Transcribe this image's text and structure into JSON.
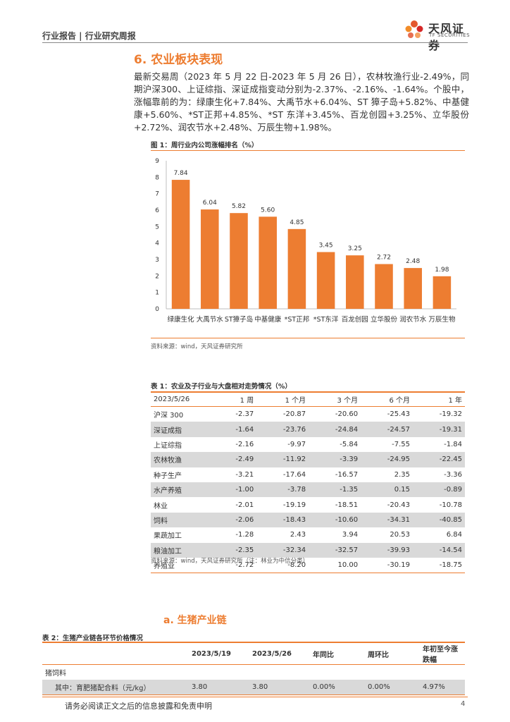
{
  "header": {
    "crumb": "行业报告 | 行业研究周报",
    "logo_cn": "天风证券",
    "logo_en": "TF SECURITIES"
  },
  "section": {
    "title": "6. 农业板块表现"
  },
  "paragraph": "最新交易周（2023 年 5 月 22 日-2023 年 5 月 26 日），农林牧渔行业-2.49%，同期沪深300、上证综指、深证成指变动分别为-2.37%、-2.16%、-1.64%。个股中，涨幅靠前的为：绿康生化+7.84%、大禹节水+6.04%、ST 獐子岛+5.82%、中基健康+5.60%、*ST正邦+4.85%、*ST 东洋+3.45%、百龙创园+3.25%、立华股份+2.72%、润农节水+2.48%、万辰生物+1.98%。",
  "figure1": {
    "caption": "图 1：周行业内公司涨幅排名（%）",
    "source": "资料来源：wind，天风证券研究所"
  },
  "chart_data": {
    "type": "bar",
    "title": "周行业内公司涨幅排名（%）",
    "categories": [
      "绿康生化",
      "大禹节水",
      "ST獐子岛",
      "中基健康",
      "*ST正邦",
      "*ST东洋",
      "百龙创园",
      "立华股份",
      "润农节水",
      "万辰生物"
    ],
    "values": [
      7.84,
      6.04,
      5.82,
      5.6,
      4.85,
      3.45,
      3.25,
      2.72,
      2.48,
      1.98
    ],
    "value_labels": [
      "7.84",
      "6.04",
      "5.82",
      "5.60",
      "4.85",
      "3.45",
      "3.25",
      "2.72",
      "2.48",
      "1.98"
    ],
    "yticks": [
      "0",
      "1",
      "2",
      "3",
      "4",
      "5",
      "6",
      "7",
      "8",
      "9"
    ],
    "ylim": [
      0,
      9
    ],
    "grid": false,
    "bar_color": "#ED7D31"
  },
  "table1": {
    "caption": "表 1：农业及子行业与大盘相对走势情况（%）",
    "headers": [
      "2023/5/26",
      "1 周",
      "1 个月",
      "3 个月",
      "6 个月",
      "1 年"
    ],
    "rows": [
      [
        "沪深 300",
        "-2.37",
        "-20.87",
        "-20.60",
        "-25.43",
        "-19.32"
      ],
      [
        "深证成指",
        "-1.64",
        "-23.76",
        "-24.84",
        "-24.57",
        "-19.31"
      ],
      [
        "上证综指",
        "-2.16",
        "-9.97",
        "-5.84",
        "-7.55",
        "-1.84"
      ],
      [
        "农林牧渔",
        "-2.49",
        "-11.92",
        "-3.39",
        "-24.95",
        "-22.45"
      ],
      [
        "种子生产",
        "-3.21",
        "-17.64",
        "-16.57",
        "2.35",
        "-3.36"
      ],
      [
        "水产养殖",
        "-1.00",
        "-3.78",
        "-1.35",
        "0.15",
        "-0.89"
      ],
      [
        "林业",
        "-2.01",
        "-19.19",
        "-18.51",
        "-20.43",
        "-10.78"
      ],
      [
        "饲料",
        "-2.06",
        "-18.43",
        "-10.60",
        "-34.31",
        "-40.85"
      ],
      [
        "果蔬加工",
        "-1.28",
        "2.43",
        "3.94",
        "20.53",
        "6.84"
      ],
      [
        "粮油加工",
        "-2.35",
        "-32.34",
        "-32.57",
        "-39.93",
        "-14.54"
      ],
      [
        "养殖业",
        "-2.72",
        "-8.20",
        "10.00",
        "-30.19",
        "-18.75"
      ]
    ],
    "source": "资料来源：wind，天风证券研究所（注：林业为中信分类）"
  },
  "subsection": {
    "title": "a.   生猪产业链"
  },
  "table2": {
    "caption": "表 2：生猪产业链各环节价格情况",
    "headers": [
      "",
      "2023/5/19",
      "2023/5/26",
      "年同比",
      "周环比",
      "年初至今涨跌幅"
    ],
    "group": "猪饲料",
    "row": [
      "其中：育肥猪配合料（元/kg）",
      "3.80",
      "3.80",
      "0.00%",
      "0.00%",
      "4.97%"
    ]
  },
  "footer": {
    "disclaimer": "请务必阅读正文之后的信息披露和免责申明",
    "page": "4"
  }
}
